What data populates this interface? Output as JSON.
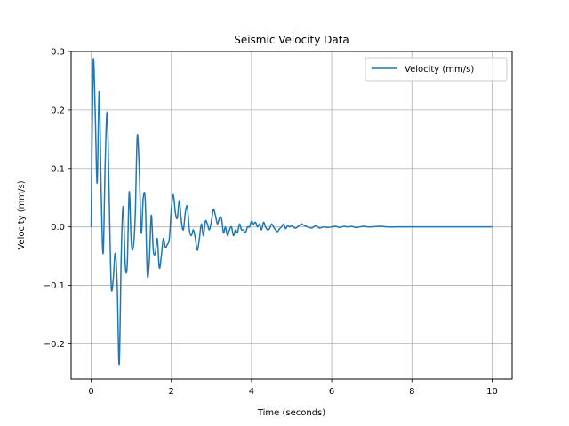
{
  "chart_data": {
    "type": "line",
    "title": "Seismic Velocity Data",
    "xlabel": "Time (seconds)",
    "ylabel": "Velocity (mm/s)",
    "xlim": [
      -0.5,
      10.5
    ],
    "ylim": [
      -0.26,
      0.3
    ],
    "xticks": [
      0,
      2,
      4,
      6,
      8,
      10
    ],
    "yticks": [
      -0.2,
      -0.1,
      0.0,
      0.1,
      0.2,
      0.3
    ],
    "xtick_labels": [
      "0",
      "2",
      "4",
      "6",
      "8",
      "10"
    ],
    "ytick_labels": [
      "−0.2",
      "−0.1",
      "0.0",
      "0.1",
      "0.2",
      "0.3"
    ],
    "grid": true,
    "legend_position": "top-right",
    "series": [
      {
        "name": "Velocity (mm/s)",
        "color": "#1f77b4",
        "x": [
          0,
          0.05,
          0.1,
          0.15,
          0.2,
          0.25,
          0.3,
          0.35,
          0.4,
          0.45,
          0.5,
          0.55,
          0.6,
          0.65,
          0.7,
          0.75,
          0.8,
          0.85,
          0.9,
          0.95,
          1.0,
          1.05,
          1.1,
          1.15,
          1.2,
          1.25,
          1.3,
          1.35,
          1.4,
          1.45,
          1.5,
          1.55,
          1.6,
          1.65,
          1.7,
          1.75,
          1.8,
          1.85,
          1.9,
          1.95,
          2.0,
          2.05,
          2.1,
          2.15,
          2.2,
          2.25,
          2.3,
          2.35,
          2.4,
          2.45,
          2.5,
          2.55,
          2.6,
          2.65,
          2.7,
          2.75,
          2.8,
          2.85,
          2.9,
          2.95,
          3.0,
          3.05,
          3.1,
          3.15,
          3.2,
          3.25,
          3.3,
          3.35,
          3.4,
          3.45,
          3.5,
          3.55,
          3.6,
          3.65,
          3.7,
          3.75,
          3.8,
          3.85,
          3.9,
          3.95,
          4.0,
          4.05,
          4.1,
          4.15,
          4.2,
          4.25,
          4.3,
          4.35,
          4.4,
          4.45,
          4.5,
          4.55,
          4.6,
          4.65,
          4.7,
          4.75,
          4.8,
          4.85,
          4.9,
          4.95,
          5.0,
          5.1,
          5.2,
          5.25,
          5.3,
          5.4,
          5.5,
          5.6,
          5.7,
          5.8,
          5.9,
          6.0,
          6.1,
          6.2,
          6.3,
          6.4,
          6.5,
          6.6,
          6.7,
          6.8,
          6.9,
          7.0,
          7.2,
          7.4,
          7.6,
          7.8,
          8.0,
          8.5,
          9.0,
          9.5,
          10.0
        ],
        "values": [
          0.0,
          0.28,
          0.2,
          0.075,
          0.232,
          0.06,
          -0.045,
          0.11,
          0.195,
          0.05,
          -0.1,
          -0.09,
          -0.045,
          -0.1,
          -0.235,
          -0.05,
          0.035,
          -0.065,
          -0.065,
          0.06,
          -0.025,
          -0.035,
          0.02,
          0.155,
          0.1,
          -0.01,
          0.05,
          0.045,
          -0.08,
          -0.06,
          0.02,
          -0.04,
          -0.045,
          -0.02,
          -0.07,
          -0.05,
          -0.02,
          -0.035,
          -0.03,
          -0.02,
          0.03,
          0.055,
          0.025,
          0.015,
          0.045,
          0.01,
          -0.005,
          0.025,
          0.035,
          -0.005,
          -0.015,
          -0.005,
          -0.02,
          -0.04,
          -0.02,
          0.005,
          -0.015,
          0.01,
          0.005,
          -0.005,
          0.01,
          0.03,
          0.02,
          0.005,
          0.015,
          0.015,
          -0.01,
          0.0,
          -0.015,
          -0.005,
          0.0,
          -0.015,
          -0.005,
          -0.01,
          0.005,
          -0.005,
          -0.005,
          -0.01,
          0.0,
          0.0,
          0.01,
          0.005,
          0.008,
          0.0,
          0.005,
          -0.005,
          0.008,
          0.0,
          -0.005,
          -0.003,
          0.005,
          0.0,
          -0.005,
          -0.008,
          -0.003,
          0.0,
          0.005,
          -0.003,
          0.002,
          0.0,
          0.002,
          -0.002,
          0.003,
          0.005,
          0.003,
          0.0,
          -0.002,
          0.002,
          -0.002,
          0.0,
          -0.001,
          0.0,
          0.001,
          -0.001,
          0.001,
          0.0,
          0.001,
          -0.001,
          0.0,
          0.001,
          0.0,
          0.0,
          0.001,
          0.0,
          0.0,
          0.0,
          0.0,
          0.0,
          0.0,
          0.0,
          0.0
        ]
      }
    ]
  }
}
